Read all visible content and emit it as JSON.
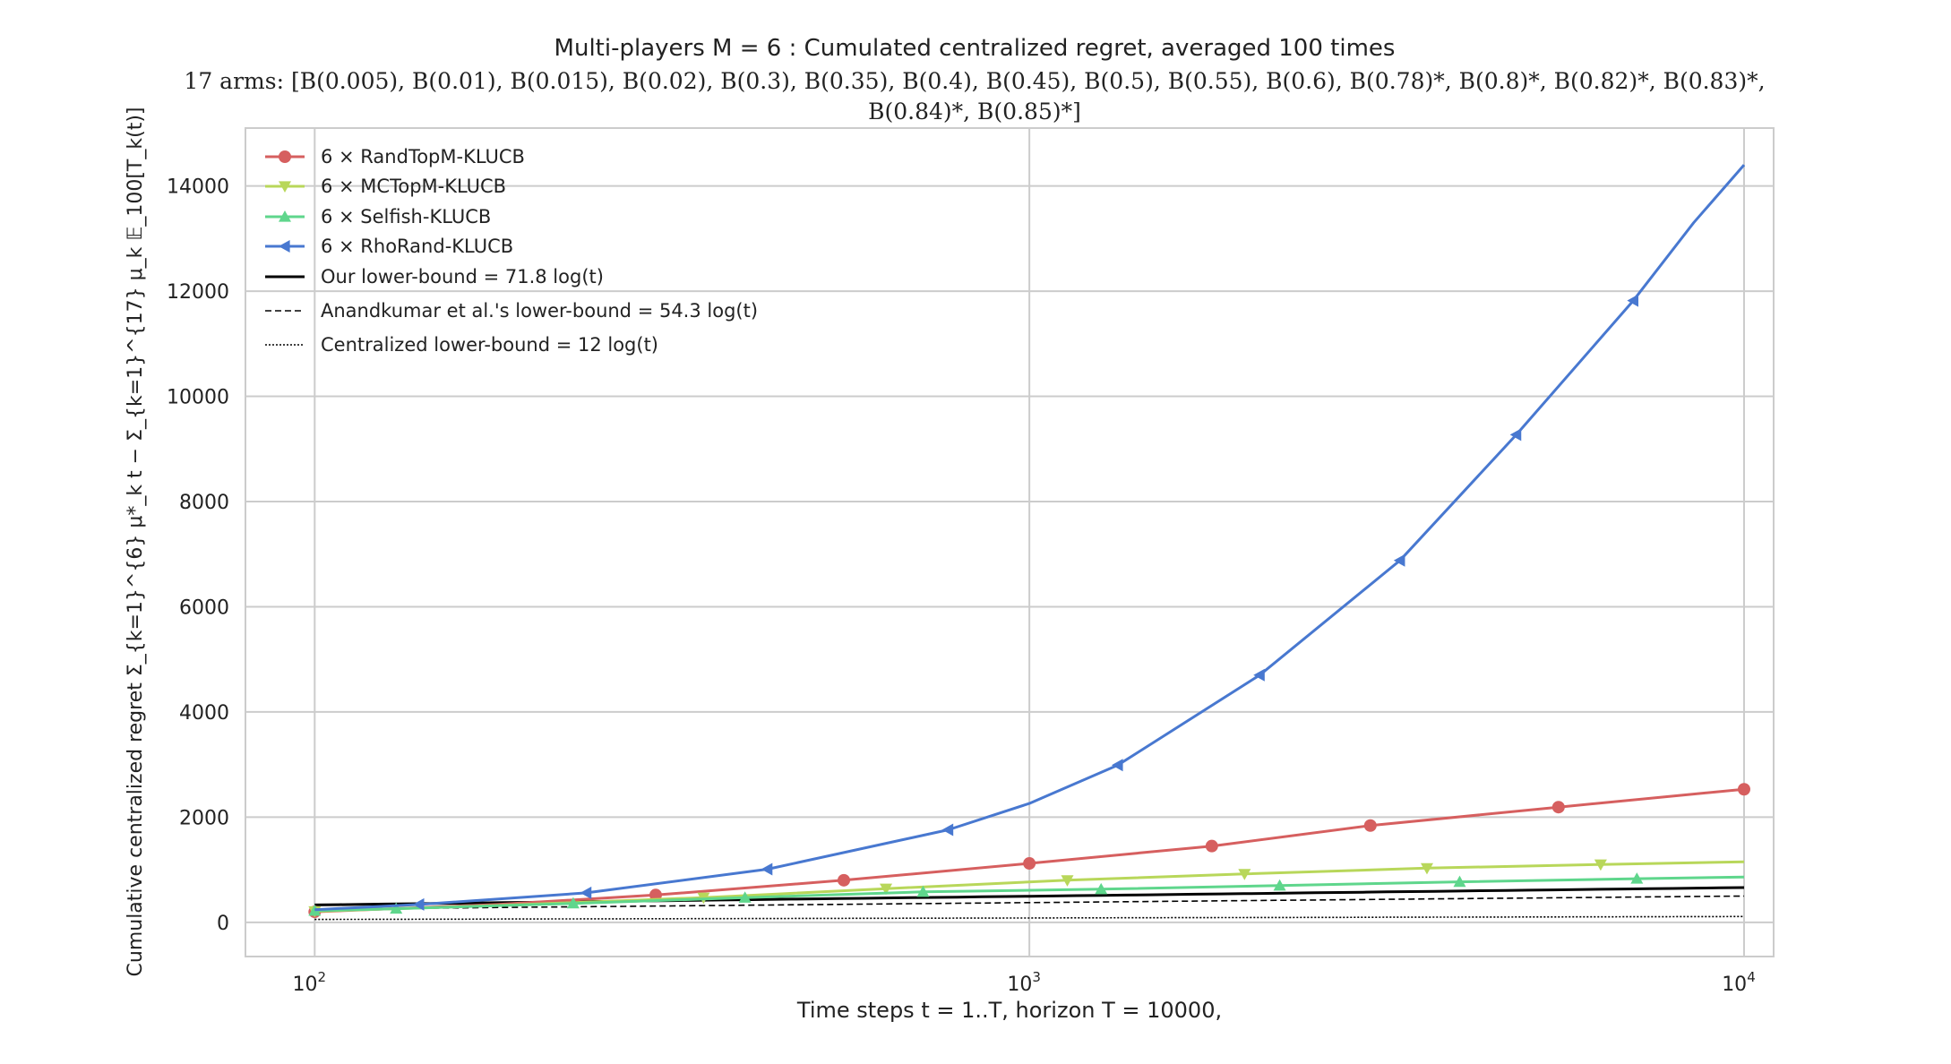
{
  "chart_data": {
    "type": "line",
    "title": "Multi-players M = 6 : Cumulated centralized regret, averaged 100 times",
    "subtitle_line1": "17 arms: [B(0.005), B(0.01), B(0.015), B(0.02), B(0.3), B(0.35), B(0.4), B(0.45), B(0.5), B(0.55), B(0.6), B(0.78)*, B(0.8)*, B(0.82)*, B(0.83)*,",
    "subtitle_line2": "B(0.84)*, B(0.85)*]",
    "xlabel": "Time steps t = 1..T, horizon T = 10000,",
    "ylabel": "Cumulative centralized regret Σ_{k=1}^{6} μ*_k t − Σ_{k=1}^{17} μ_k 𝔼_100[T_k(t)]",
    "xscale": "log",
    "xlim": [
      80,
      11000
    ],
    "ylim": [
      -650,
      15100
    ],
    "grid": true,
    "legend_position": "top-left",
    "x_ticks": [
      {
        "value": 100,
        "base": "10",
        "exp": "2"
      },
      {
        "value": 1000,
        "base": "10",
        "exp": "3"
      },
      {
        "value": 10000,
        "base": "10",
        "exp": "4"
      }
    ],
    "y_ticks": [
      {
        "value": 0,
        "label": "0"
      },
      {
        "value": 2000,
        "label": "2000"
      },
      {
        "value": 4000,
        "label": "4000"
      },
      {
        "value": 6000,
        "label": "6000"
      },
      {
        "value": 8000,
        "label": "8000"
      },
      {
        "value": 10000,
        "label": "10000"
      },
      {
        "value": 12000,
        "label": "12000"
      },
      {
        "value": 14000,
        "label": "14000"
      }
    ],
    "series": [
      {
        "name": "6 × RandTopM-KLUCB",
        "color": "#d65f5f",
        "marker": "circle",
        "line_style": "solid",
        "x": [
          100,
          180,
          300,
          550,
          1000,
          1800,
          3000,
          5500,
          10000
        ],
        "values": [
          200,
          340,
          520,
          800,
          1120,
          1450,
          1840,
          2190,
          2530
        ],
        "markers_at": [
          0,
          2,
          3,
          4,
          5,
          6,
          7,
          8
        ]
      },
      {
        "name": "6 × MCTopM-KLUCB",
        "color": "#b8d75a",
        "marker": "triangle-down",
        "line_style": "solid",
        "x": [
          100,
          180,
          350,
          630,
          1130,
          2000,
          3600,
          6300,
          10000
        ],
        "values": [
          210,
          320,
          470,
          640,
          800,
          920,
          1030,
          1100,
          1150
        ],
        "markers_at": [
          0,
          2,
          3,
          4,
          5,
          6,
          7
        ]
      },
      {
        "name": "6 × Selfish-KLUCB",
        "color": "#5fd68c",
        "marker": "triangle-up",
        "line_style": "solid",
        "x": [
          100,
          130,
          230,
          400,
          710,
          1260,
          2240,
          4000,
          7080,
          10000
        ],
        "values": [
          220,
          260,
          360,
          470,
          580,
          630,
          700,
          770,
          830,
          860
        ],
        "markers_at": [
          0,
          1,
          2,
          3,
          4,
          5,
          6,
          7,
          8
        ]
      },
      {
        "name": "6 × RhoRand-KLUCB",
        "color": "#4878d0",
        "marker": "triangle-left",
        "line_style": "solid",
        "x": [
          100,
          140,
          240,
          430,
          770,
          1000,
          1330,
          2100,
          3300,
          4800,
          7000,
          8500,
          10000
        ],
        "values": [
          240,
          340,
          560,
          1010,
          1760,
          2260,
          2990,
          4700,
          6880,
          9270,
          11820,
          13300,
          14400
        ],
        "markers_at": [
          1,
          2,
          3,
          4,
          6,
          7,
          8,
          9,
          10
        ]
      },
      {
        "name": "Our lower-bound = 71.8 log(t)",
        "color": "#000000",
        "marker": "none",
        "line_style": "solid",
        "coefficient": 71.8
      },
      {
        "name": "Anandkumar et al.'s lower-bound = 54.3 log(t)",
        "color": "#000000",
        "marker": "none",
        "line_style": "dashed",
        "coefficient": 54.3
      },
      {
        "name": "Centralized lower-bound = 12 log(t)",
        "color": "#000000",
        "marker": "none",
        "line_style": "dotted",
        "coefficient": 12
      }
    ]
  }
}
